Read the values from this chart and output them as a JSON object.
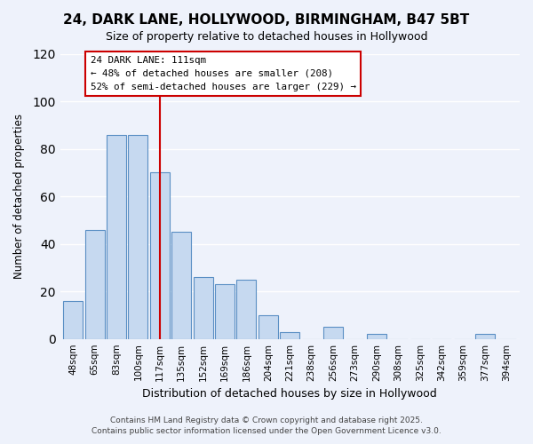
{
  "title": "24, DARK LANE, HOLLYWOOD, BIRMINGHAM, B47 5BT",
  "subtitle": "Size of property relative to detached houses in Hollywood",
  "xlabel": "Distribution of detached houses by size in Hollywood",
  "ylabel": "Number of detached properties",
  "categories": [
    "48sqm",
    "65sqm",
    "83sqm",
    "100sqm",
    "117sqm",
    "135sqm",
    "152sqm",
    "169sqm",
    "186sqm",
    "204sqm",
    "221sqm",
    "238sqm",
    "256sqm",
    "273sqm",
    "290sqm",
    "308sqm",
    "325sqm",
    "342sqm",
    "359sqm",
    "377sqm",
    "394sqm"
  ],
  "values": [
    16,
    46,
    86,
    86,
    70,
    45,
    26,
    23,
    25,
    10,
    3,
    0,
    5,
    0,
    2,
    0,
    0,
    0,
    0,
    2,
    0
  ],
  "bar_color": "#c6d9f0",
  "bar_edge_color": "#5a8fc4",
  "marker_line_index": 4,
  "marker_line_color": "#cc0000",
  "ylim": [
    0,
    120
  ],
  "yticks": [
    0,
    20,
    40,
    60,
    80,
    100,
    120
  ],
  "annotation_title": "24 DARK LANE: 111sqm",
  "annotation_line1": "← 48% of detached houses are smaller (208)",
  "annotation_line2": "52% of semi-detached houses are larger (229) →",
  "annotation_box_color": "#ffffff",
  "annotation_box_edge_color": "#cc0000",
  "footer_line1": "Contains HM Land Registry data © Crown copyright and database right 2025.",
  "footer_line2": "Contains public sector information licensed under the Open Government Licence v3.0.",
  "background_color": "#eef2fb",
  "grid_color": "#ffffff"
}
